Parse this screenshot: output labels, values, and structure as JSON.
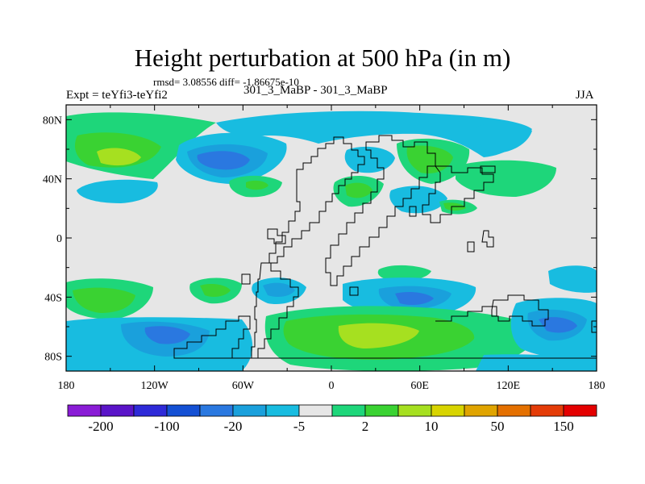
{
  "title": "Height perturbation at 500 hPa (in m)",
  "stats": "rmsd= 3.08556 diff= -1.86675e-10",
  "left_label": "Expt = teYfi3-teYfi2",
  "center_label": "301_3_MaBP - 301_3_MaBP",
  "right_label": "JJA",
  "map": {
    "lon_range": [
      -180,
      180
    ],
    "lat_range": [
      -90,
      90
    ],
    "lat_ticks": [
      {
        "value": 80,
        "label": "80N"
      },
      {
        "value": 40,
        "label": "40N"
      },
      {
        "value": 0,
        "label": "0"
      },
      {
        "value": -40,
        "label": "40S"
      },
      {
        "value": -80,
        "label": "80S"
      }
    ],
    "lon_ticks": [
      {
        "value": -180,
        "label": "180"
      },
      {
        "value": -120,
        "label": "120W"
      },
      {
        "value": -60,
        "label": "60W"
      },
      {
        "value": 0,
        "label": "0"
      },
      {
        "value": 60,
        "label": "60E"
      },
      {
        "value": 120,
        "label": "120E"
      },
      {
        "value": 180,
        "label": "180"
      }
    ]
  },
  "colorbar": {
    "colors": [
      "#8a1cd6",
      "#5a14c8",
      "#2e2ad8",
      "#1450d4",
      "#2a78e0",
      "#1aa0dc",
      "#18bce0",
      "#e6e6e6",
      "#1ed67a",
      "#3ad232",
      "#a6e020",
      "#d8d400",
      "#e0a400",
      "#e47000",
      "#e43c08",
      "#e40000"
    ],
    "labels": [
      {
        "boundary": 1,
        "text": "-200"
      },
      {
        "boundary": 3,
        "text": "-100"
      },
      {
        "boundary": 5,
        "text": "-20"
      },
      {
        "boundary": 7,
        "text": "-5"
      },
      {
        "boundary": 9,
        "text": "2"
      },
      {
        "boundary": 11,
        "text": "10"
      },
      {
        "boundary": 13,
        "text": "50"
      },
      {
        "boundary": 15,
        "text": "150"
      }
    ]
  },
  "palette": {
    "land_bg": "#e6e6e6",
    "pos_light": "#1ed67a",
    "pos_mid": "#3ad232",
    "pos_strong": "#a6e020",
    "neg_light": "#18bce0",
    "neg_mid": "#1aa0dc",
    "neg_strong": "#2a78e0"
  }
}
